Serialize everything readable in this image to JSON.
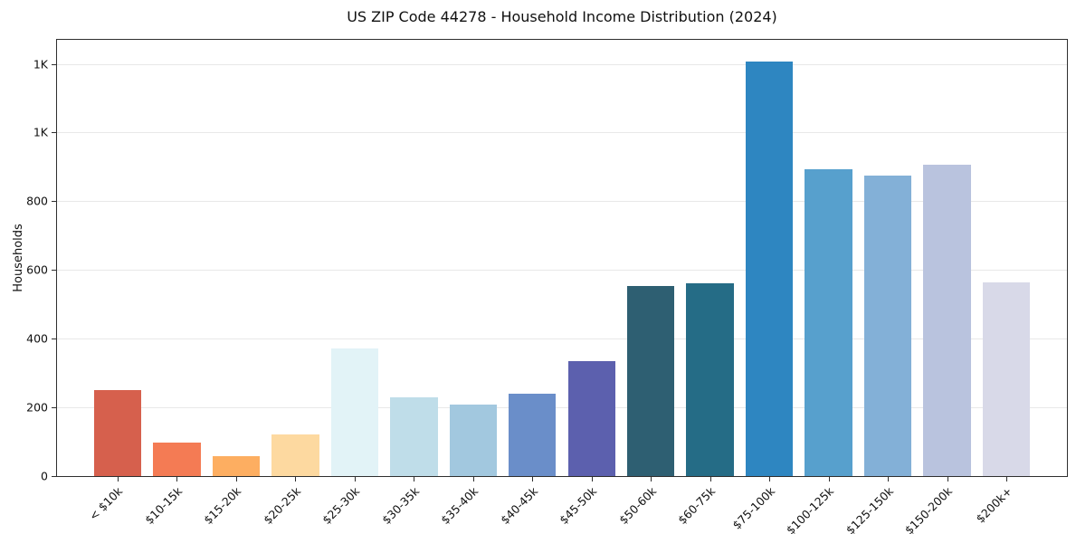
{
  "figure": {
    "title": "US ZIP Code 44278 - Household Income Distribution (2024)"
  },
  "chart_data": {
    "type": "bar",
    "title": "US ZIP Code 44278 - Household Income Distribution (2024)",
    "xlabel": "",
    "ylabel": "Households",
    "ylim": [
      0,
      1270
    ],
    "grid": true,
    "legend": false,
    "yticks": [
      {
        "value": 0,
        "label": "0"
      },
      {
        "value": 200,
        "label": "200"
      },
      {
        "value": 400,
        "label": "400"
      },
      {
        "value": 600,
        "label": "600"
      },
      {
        "value": 800,
        "label": "800"
      },
      {
        "value": 1000,
        "label": "1K"
      },
      {
        "value": 1200,
        "label": "1K"
      }
    ],
    "categories": [
      "< $10k",
      "$10-15k",
      "$15-20k",
      "$20-25k",
      "$25-30k",
      "$30-35k",
      "$35-40k",
      "$40-45k",
      "$45-50k",
      "$50-60k",
      "$60-75k",
      "$75-100k",
      "$100-125k",
      "$125-150k",
      "$150-200k",
      "$200k+"
    ],
    "values": [
      250,
      97,
      57,
      121,
      371,
      229,
      207,
      239,
      334,
      553,
      560,
      1208,
      892,
      875,
      907,
      563
    ],
    "colors": [
      "#d6604d",
      "#f47b54",
      "#fdae61",
      "#fdd9a0",
      "#e2f3f7",
      "#bfdde9",
      "#a2c8df",
      "#6a8ec9",
      "#5c60ae",
      "#2e5f72",
      "#256c86",
      "#2e86c1",
      "#57a0cd",
      "#83b0d7",
      "#b9c3de",
      "#d8d9e8"
    ]
  }
}
